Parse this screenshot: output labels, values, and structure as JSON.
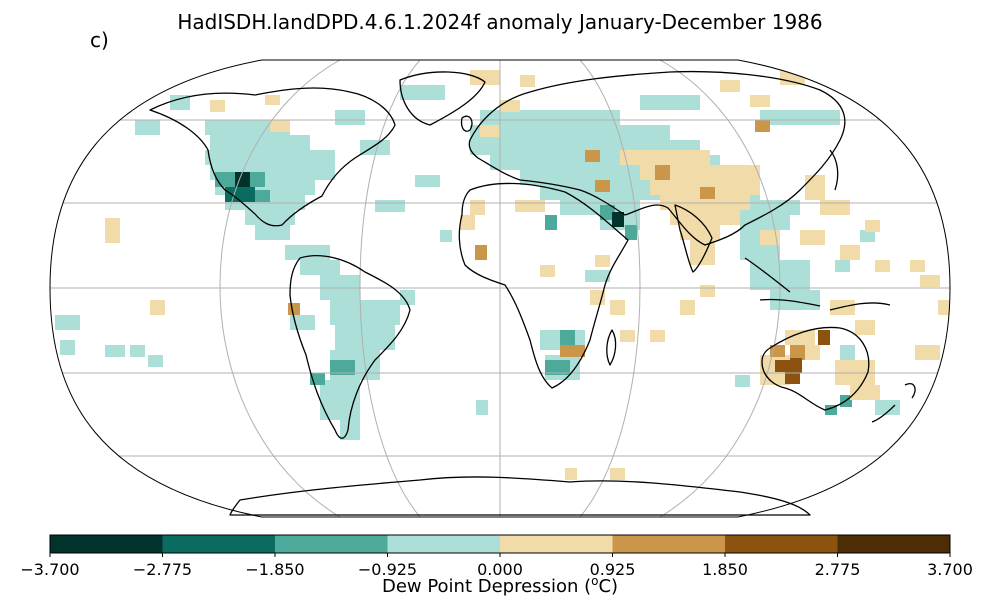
{
  "title": "HadISDH.landDPD.4.6.1.2024f anomaly January-December 1986",
  "panel_label": "c)",
  "colorbar": {
    "label": "Dew Point Depression (",
    "label_sup": "o",
    "label_end": "C)",
    "ticks": [
      "−3.700",
      "−2.775",
      "−1.850",
      "−0.925",
      "0.000",
      "0.925",
      "1.850",
      "2.775",
      "3.700"
    ],
    "colors": [
      "#01332c",
      "#0b6b61",
      "#4daa9a",
      "#abdfd8",
      "#f1dca9",
      "#c9964a",
      "#8c520f",
      "#4d2d06"
    ]
  },
  "map_style": {
    "projection": "Robinson",
    "gridlines": true,
    "coastline_color": "#000000",
    "grid_color": "#b0b0b0"
  }
}
